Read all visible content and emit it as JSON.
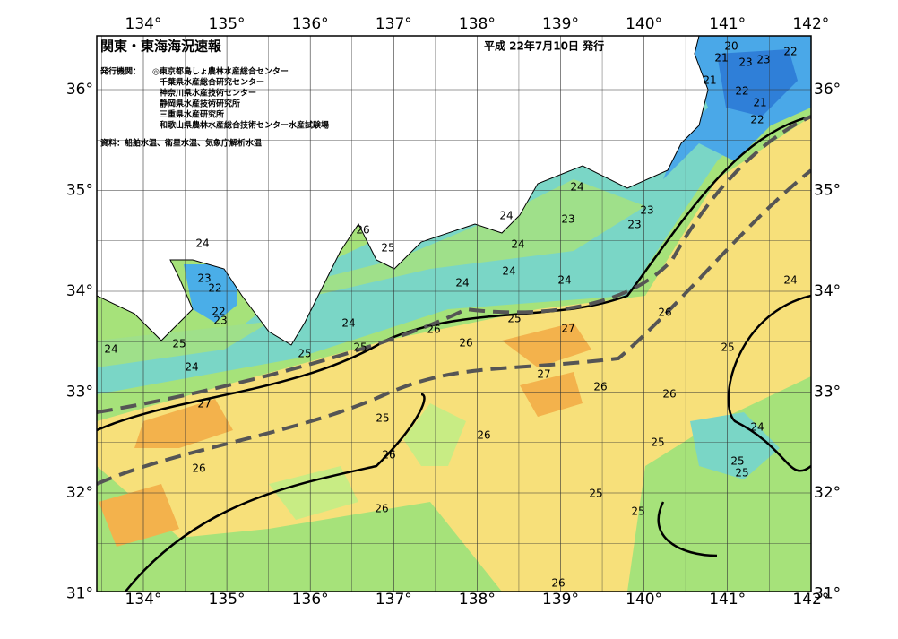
{
  "header": {
    "title": "関東・東海海況速報",
    "date": "平成 22年7月10日 発行"
  },
  "issuer": {
    "label": "発行機関：",
    "organizations": [
      "◎東京都島しょ農林水産総合センター",
      "千葉県水産総合研究センター",
      "神奈川県水産技術センター",
      "静岡県水産技術研究所",
      "三重県水産研究所",
      "和歌山県農林水産総合技術センター水産試験場"
    ]
  },
  "source": "資料：船舶水温、衛星水温、気象庁解析水温",
  "map": {
    "lon_ticks": [
      {
        "value": 134,
        "label": "134°"
      },
      {
        "value": 135,
        "label": "135°"
      },
      {
        "value": 136,
        "label": "136°"
      },
      {
        "value": 137,
        "label": "137°"
      },
      {
        "value": 138,
        "label": "138°"
      },
      {
        "value": 139,
        "label": "139°"
      },
      {
        "value": 140,
        "label": "140°"
      },
      {
        "value": 141,
        "label": "141°"
      },
      {
        "value": 142,
        "label": "142°"
      }
    ],
    "lat_ticks": [
      {
        "value": 31,
        "label": "31°"
      },
      {
        "value": 32,
        "label": "32°"
      },
      {
        "value": 33,
        "label": "33°"
      },
      {
        "value": 34,
        "label": "34°"
      },
      {
        "value": 35,
        "label": "35°"
      },
      {
        "value": 36,
        "label": "36°"
      }
    ],
    "contour_labels": [
      20,
      21,
      23,
      23,
      22,
      21,
      22,
      21,
      22,
      24,
      23,
      22,
      22,
      23,
      24,
      25,
      24,
      27,
      26,
      26,
      25,
      24,
      24,
      23,
      23,
      23,
      24,
      24,
      24,
      24,
      24,
      25,
      25,
      26,
      25,
      26,
      27,
      27,
      26,
      26,
      26,
      25,
      25,
      26,
      26,
      26,
      25,
      25,
      25,
      24,
      25,
      25,
      24,
      26
    ]
  }
}
